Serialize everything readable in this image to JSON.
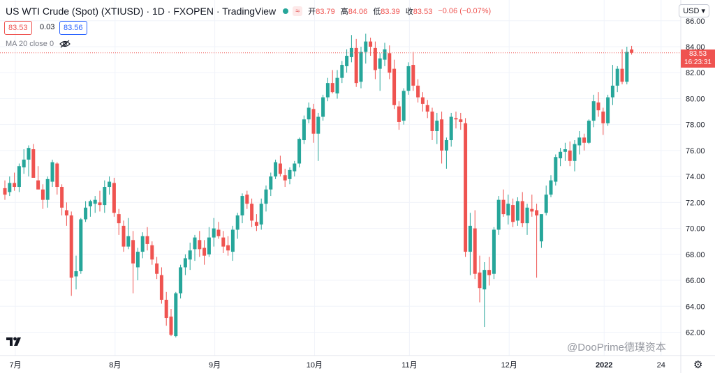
{
  "header": {
    "title": "US WTI Crude (Spot) (XTIUSD) · 1D · FXOPEN · TradingView",
    "status_badge": "≈",
    "open_label": "开",
    "open_value": "83.79",
    "high_label": "高",
    "high_value": "84.06",
    "low_label": "低",
    "low_value": "83.39",
    "close_label": "收",
    "close_value": "83.53",
    "change_value": "−0.06 (−0.07%)"
  },
  "prices": {
    "bid": "83.53",
    "spread": "0.03",
    "ask": "83.56"
  },
  "indicator": {
    "label": "MA 20 close 0"
  },
  "currency": {
    "label": "USD"
  },
  "last_price": {
    "value": "83.53",
    "countdown": "16:23:31"
  },
  "watermark": "@DooPrime德璞资本",
  "colors": {
    "up": "#26a69a",
    "down": "#ef5350",
    "grid": "#f0f3fa",
    "text": "#131722"
  },
  "chart_data": {
    "type": "candlestick",
    "title": "US WTI Crude (Spot) (XTIUSD)",
    "y_ticks": [
      62,
      64,
      66,
      68,
      70,
      72,
      74,
      76,
      78,
      80,
      82,
      84,
      86
    ],
    "y_tick_labels": [
      "62.00",
      "64.00",
      "66.00",
      "68.00",
      "70.00",
      "72.00",
      "74.00",
      "76.00",
      "78.00",
      "80.00",
      "82.00",
      "84.00",
      "86.00"
    ],
    "ylim": [
      60.2,
      87.6
    ],
    "x_labels": [
      "7月",
      "8月",
      "9月",
      "10月",
      "11月",
      "12月",
      "2022",
      "24"
    ],
    "last_close": 83.53,
    "candles": [
      [
        73.1,
        73.7,
        72.2,
        72.6
      ],
      [
        72.8,
        74.0,
        72.5,
        73.5
      ],
      [
        73.5,
        74.3,
        72.9,
        73.2
      ],
      [
        73.2,
        75.0,
        72.8,
        74.8
      ],
      [
        74.7,
        76.1,
        74.2,
        75.3
      ],
      [
        75.3,
        76.4,
        74.0,
        76.2
      ],
      [
        76.1,
        76.5,
        73.9,
        73.9
      ],
      [
        73.7,
        74.8,
        73.0,
        73.0
      ],
      [
        73.0,
        73.4,
        71.5,
        72.2
      ],
      [
        72.2,
        74.0,
        71.6,
        73.8
      ],
      [
        73.6,
        75.3,
        73.2,
        75.1
      ],
      [
        75.0,
        75.1,
        72.6,
        73.2
      ],
      [
        73.2,
        73.4,
        71.0,
        71.6
      ],
      [
        71.4,
        72.0,
        70.2,
        71.0
      ],
      [
        71.0,
        71.3,
        64.8,
        66.2
      ],
      [
        66.3,
        67.9,
        65.3,
        66.7
      ],
      [
        66.7,
        70.8,
        66.5,
        70.7
      ],
      [
        70.7,
        72.1,
        70.5,
        71.6
      ],
      [
        71.7,
        72.2,
        70.9,
        72.1
      ],
      [
        71.9,
        72.5,
        71.2,
        72.2
      ],
      [
        72.0,
        72.9,
        71.3,
        71.8
      ],
      [
        71.8,
        73.7,
        71.2,
        73.2
      ],
      [
        73.2,
        74.0,
        72.6,
        73.6
      ],
      [
        73.5,
        73.9,
        70.9,
        71.2
      ],
      [
        71.1,
        71.5,
        69.5,
        70.4
      ],
      [
        70.2,
        70.6,
        68.2,
        68.6
      ],
      [
        68.6,
        70.8,
        68.4,
        69.4
      ],
      [
        69.1,
        69.8,
        65.0,
        67.3
      ],
      [
        67.0,
        68.5,
        66.0,
        68.2
      ],
      [
        68.2,
        69.7,
        67.7,
        69.4
      ],
      [
        69.4,
        70.1,
        68.3,
        68.8
      ],
      [
        68.7,
        69.0,
        67.2,
        67.6
      ],
      [
        67.3,
        67.8,
        66.1,
        66.5
      ],
      [
        66.4,
        67.0,
        64.2,
        64.5
      ],
      [
        64.5,
        65.1,
        62.5,
        63.1
      ],
      [
        63.2,
        63.8,
        61.7,
        61.8
      ],
      [
        61.7,
        65.1,
        61.6,
        65.0
      ],
      [
        65.0,
        67.2,
        64.6,
        67.0
      ],
      [
        67.0,
        68.0,
        66.4,
        67.7
      ],
      [
        67.6,
        68.9,
        66.8,
        68.3
      ],
      [
        68.4,
        69.5,
        67.5,
        69.3
      ],
      [
        69.1,
        69.8,
        67.8,
        68.4
      ],
      [
        68.5,
        69.1,
        67.2,
        67.9
      ],
      [
        68.0,
        70.1,
        67.8,
        69.3
      ],
      [
        69.3,
        70.8,
        68.6,
        70.0
      ],
      [
        69.9,
        70.5,
        69.2,
        69.4
      ],
      [
        69.3,
        69.8,
        68.1,
        68.6
      ],
      [
        68.7,
        69.4,
        67.9,
        68.3
      ],
      [
        68.2,
        70.2,
        67.5,
        69.9
      ],
      [
        69.9,
        71.2,
        69.2,
        71.0
      ],
      [
        71.0,
        72.7,
        70.4,
        72.5
      ],
      [
        72.6,
        72.9,
        71.5,
        71.9
      ],
      [
        71.9,
        72.3,
        70.1,
        70.6
      ],
      [
        70.5,
        71.1,
        69.8,
        70.2
      ],
      [
        70.3,
        72.3,
        69.9,
        71.9
      ],
      [
        71.9,
        73.3,
        71.3,
        73.0
      ],
      [
        73.0,
        74.3,
        72.5,
        74.0
      ],
      [
        74.0,
        75.3,
        73.8,
        75.1
      ],
      [
        75.0,
        75.6,
        74.0,
        74.2
      ],
      [
        74.1,
        74.6,
        73.2,
        73.7
      ],
      [
        73.8,
        74.7,
        73.4,
        74.5
      ],
      [
        74.4,
        75.2,
        74.0,
        75.0
      ],
      [
        75.0,
        77.0,
        74.7,
        76.9
      ],
      [
        76.8,
        78.7,
        76.5,
        78.4
      ],
      [
        78.4,
        79.7,
        78.1,
        79.3
      ],
      [
        79.2,
        79.6,
        76.6,
        77.3
      ],
      [
        77.3,
        78.9,
        75.2,
        78.6
      ],
      [
        78.6,
        80.3,
        78.3,
        80.1
      ],
      [
        80.1,
        81.6,
        79.8,
        81.2
      ],
      [
        81.2,
        82.2,
        80.4,
        80.5
      ],
      [
        80.4,
        82.2,
        80.0,
        81.6
      ],
      [
        81.6,
        82.9,
        81.2,
        82.6
      ],
      [
        82.5,
        83.8,
        82.0,
        83.3
      ],
      [
        83.2,
        84.9,
        82.8,
        83.9
      ],
      [
        83.9,
        84.6,
        80.9,
        81.2
      ],
      [
        81.3,
        84.0,
        80.8,
        83.6
      ],
      [
        83.6,
        85.0,
        82.7,
        84.4
      ],
      [
        84.4,
        84.7,
        83.3,
        84.0
      ],
      [
        83.9,
        84.4,
        81.5,
        82.2
      ],
      [
        82.3,
        83.5,
        80.6,
        83.1
      ],
      [
        83.0,
        84.3,
        82.5,
        83.8
      ],
      [
        83.5,
        84.1,
        81.5,
        82.0
      ],
      [
        82.3,
        83.0,
        79.2,
        79.5
      ],
      [
        79.4,
        79.8,
        77.6,
        78.2
      ],
      [
        78.3,
        80.8,
        78.0,
        80.6
      ],
      [
        80.6,
        82.8,
        80.3,
        82.5
      ],
      [
        82.6,
        83.6,
        80.6,
        81.0
      ],
      [
        81.0,
        81.5,
        79.7,
        80.1
      ],
      [
        80.1,
        80.5,
        79.0,
        79.6
      ],
      [
        79.5,
        79.9,
        78.5,
        79.0
      ],
      [
        79.0,
        79.3,
        76.8,
        77.5
      ],
      [
        77.5,
        78.9,
        76.5,
        78.3
      ],
      [
        78.4,
        79.0,
        75.0,
        76.0
      ],
      [
        76.0,
        77.0,
        74.6,
        76.8
      ],
      [
        76.8,
        78.9,
        76.3,
        78.6
      ],
      [
        78.5,
        79.0,
        77.7,
        78.4
      ],
      [
        78.4,
        78.9,
        77.6,
        78.2
      ],
      [
        78.1,
        78.5,
        67.8,
        68.2
      ],
      [
        68.2,
        71.2,
        66.4,
        70.2
      ],
      [
        70.0,
        71.4,
        66.1,
        66.5
      ],
      [
        66.6,
        67.9,
        64.3,
        65.4
      ],
      [
        65.3,
        67.4,
        62.4,
        66.8
      ],
      [
        66.8,
        67.8,
        65.6,
        66.4
      ],
      [
        66.5,
        70.1,
        66.1,
        69.9
      ],
      [
        69.9,
        72.5,
        69.5,
        72.2
      ],
      [
        72.2,
        73.0,
        70.9,
        71.1
      ],
      [
        71.0,
        72.6,
        70.3,
        71.9
      ],
      [
        71.8,
        72.3,
        70.1,
        70.5
      ],
      [
        70.6,
        72.4,
        70.2,
        72.1
      ],
      [
        72.1,
        72.8,
        70.1,
        70.4
      ],
      [
        70.4,
        71.9,
        69.5,
        71.6
      ],
      [
        71.5,
        72.6,
        70.9,
        71.3
      ],
      [
        71.4,
        71.9,
        66.2,
        71.0
      ],
      [
        69.0,
        71.0,
        68.5,
        71.1
      ],
      [
        71.2,
        73.3,
        71.0,
        72.6
      ],
      [
        72.6,
        74.1,
        72.4,
        73.7
      ],
      [
        73.6,
        75.7,
        73.3,
        75.5
      ],
      [
        75.4,
        76.2,
        74.8,
        75.9
      ],
      [
        75.9,
        76.6,
        75.2,
        76.1
      ],
      [
        76.0,
        76.7,
        74.8,
        75.2
      ],
      [
        75.2,
        76.8,
        74.4,
        76.5
      ],
      [
        76.4,
        77.5,
        75.7,
        77.0
      ],
      [
        77.0,
        77.3,
        76.0,
        76.6
      ],
      [
        76.6,
        78.4,
        76.5,
        78.3
      ],
      [
        78.3,
        80.3,
        77.8,
        79.8
      ],
      [
        79.7,
        80.5,
        78.6,
        79.1
      ],
      [
        79.0,
        79.3,
        77.2,
        78.1
      ],
      [
        78.1,
        80.3,
        77.9,
        80.1
      ],
      [
        80.1,
        82.6,
        79.5,
        81.0
      ],
      [
        81.0,
        82.5,
        80.5,
        82.3
      ],
      [
        82.3,
        83.8,
        81.1,
        81.3
      ],
      [
        81.3,
        84.0,
        81.1,
        83.6
      ],
      [
        83.79,
        84.06,
        83.39,
        83.53
      ]
    ]
  }
}
